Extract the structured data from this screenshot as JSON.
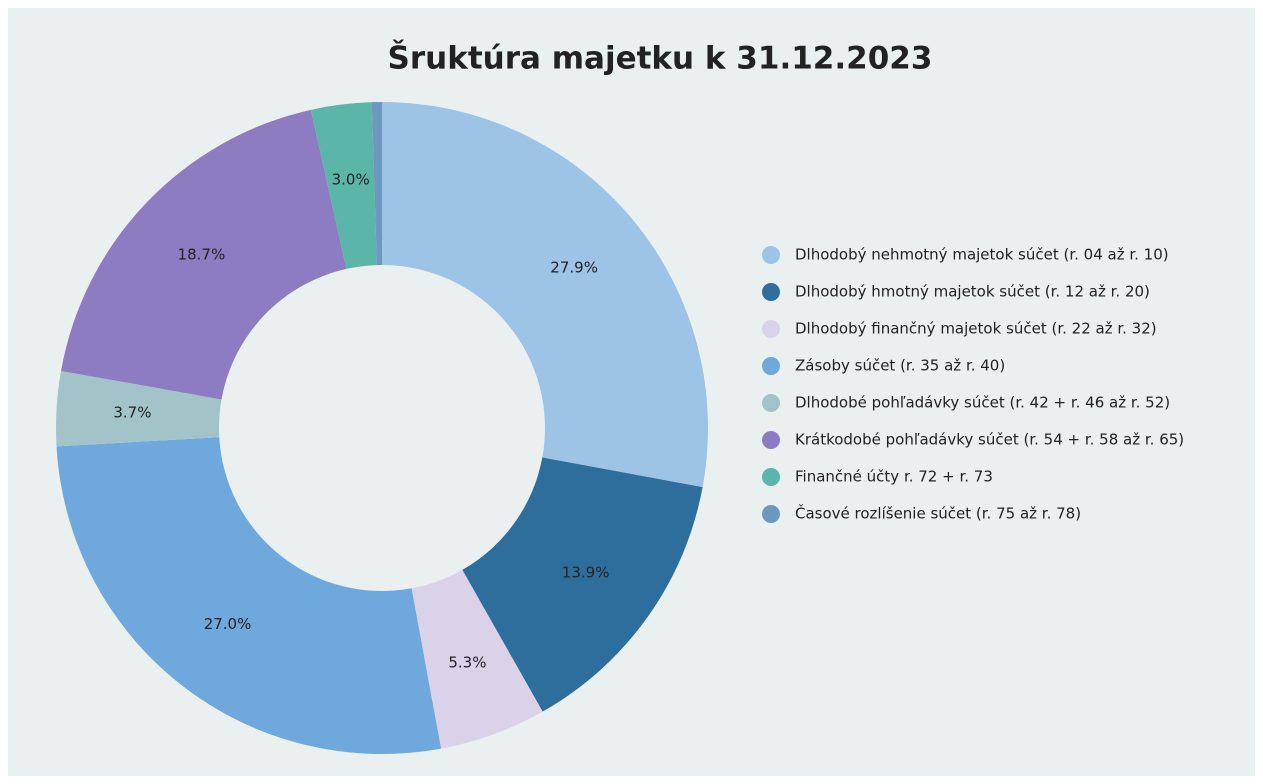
{
  "chart_data": {
    "type": "donut",
    "title": "Šruktúra majetku k 31.12.2023",
    "categories": [
      "Dlhodobý nehmotný majetok súčet (r. 04 až r. 10)",
      "Dlhodobý hmotný majetok súčet (r. 12 až r. 20)",
      "Dlhodobý finančný majetok súčet (r. 22 až r. 32)",
      "Zásoby súčet (r. 35 až r. 40)",
      "Dlhodobé pohľadávky súčet (r. 42 + r. 46 až r. 52)",
      "Krátkodobé pohľadávky súčet (r. 54 + r. 58 až r. 65)",
      "Finančné účty r. 72 + r. 73",
      "Časové rozlíšenie súčet (r. 75 až r. 78)"
    ],
    "values": [
      27.9,
      13.9,
      5.3,
      27.0,
      3.7,
      18.7,
      3.0,
      0.5
    ],
    "value_labels": [
      "27.9%",
      "13.9%",
      "5.3%",
      "27.0%",
      "3.7%",
      "18.7%",
      "3.0%",
      null
    ],
    "colors": [
      "#9dc3e6",
      "#2e6e9c",
      "#d9d2e9",
      "#6fa8dc",
      "#a2c4c9",
      "#8e7cc3",
      "#5bb5a8",
      "#6c98bf"
    ],
    "legend": "right"
  }
}
